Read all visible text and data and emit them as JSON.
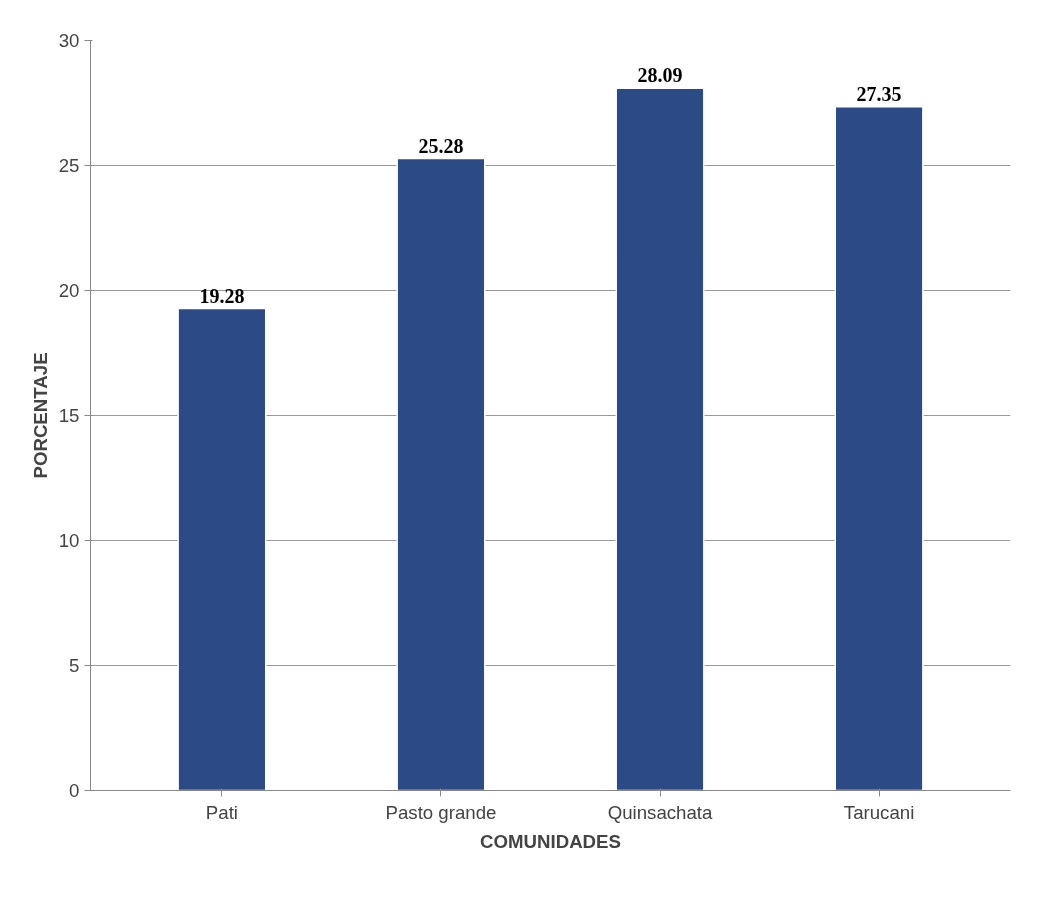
{
  "chart_data": {
    "type": "bar",
    "xlabel": "COMUNIDADES",
    "ylabel": "PORCENTAJE",
    "categories": [
      "Pati",
      "Pasto grande",
      "Quinsachata",
      "Tarucani"
    ],
    "values": [
      19.28,
      25.28,
      28.09,
      27.35
    ],
    "color": "#2b4a86",
    "ylim": [
      0,
      30
    ],
    "yticks": [
      0,
      5,
      10,
      15,
      20,
      25,
      30
    ],
    "grid": "y",
    "data_labels": true
  }
}
